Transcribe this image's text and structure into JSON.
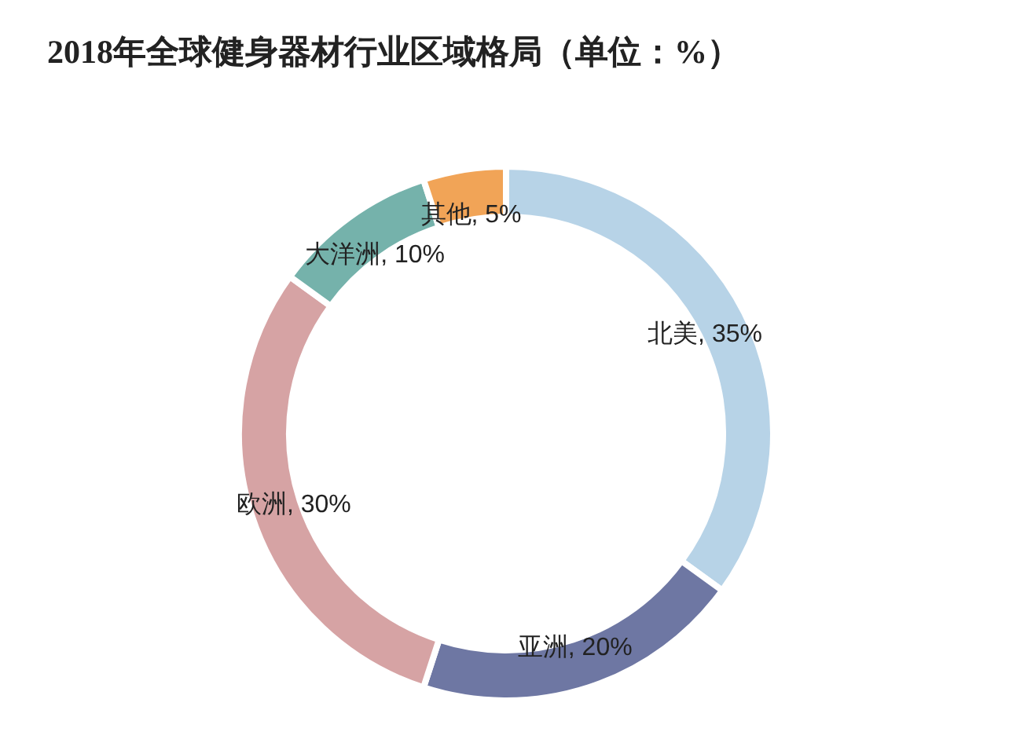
{
  "chart_data": {
    "type": "donut",
    "title": "2018年全球健身器材行业区域格局（单位：%）",
    "categories": [
      "北美",
      "亚洲",
      "欧洲",
      "大洋洲",
      "其他"
    ],
    "values": [
      35,
      20,
      30,
      10,
      5
    ],
    "value_labels": [
      ", 35%",
      ", 20%",
      ", 30%",
      ", 10%",
      ", 5%"
    ],
    "colors": [
      "#b7d3e7",
      "#6e77a3",
      "#d6a3a4",
      "#75b2ab",
      "#f1a457"
    ]
  }
}
